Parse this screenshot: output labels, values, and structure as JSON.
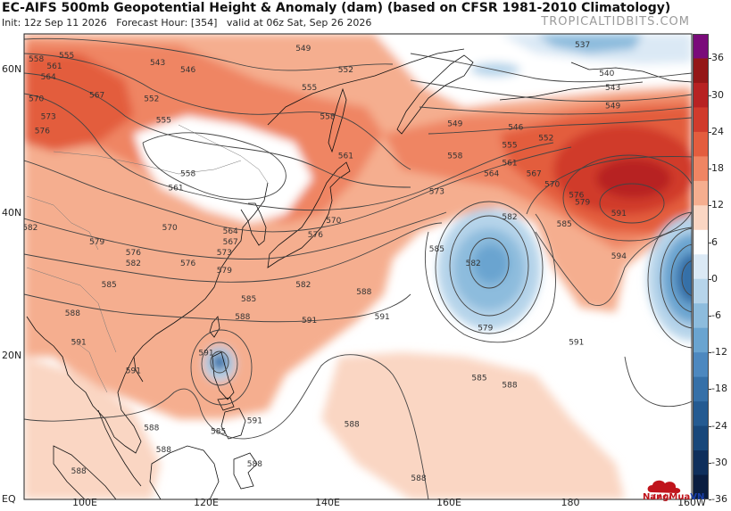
{
  "header": {
    "title": "EC-AIFS 500mb Geopotential Height & Anomaly (dam) (based on CFSR 1981-2010 Climatology)",
    "subtitle_init": "Init: 12z Sep 11 2026",
    "subtitle_hour": "Forecast Hour: [354]",
    "subtitle_valid": "valid at 06z Sat, Sep 26 2026",
    "brand": "TROPICALTIDBITS.COM"
  },
  "map": {
    "lat_labels": [
      {
        "text": "60N",
        "lat": 60
      },
      {
        "text": "40N",
        "lat": 40
      },
      {
        "text": "20N",
        "lat": 20
      },
      {
        "text": "EQ",
        "lat": 0
      }
    ],
    "lon_labels": [
      {
        "text": "100E",
        "lon": 100
      },
      {
        "text": "120E",
        "lon": 120
      },
      {
        "text": "140E",
        "lon": 140
      },
      {
        "text": "160E",
        "lon": 160
      },
      {
        "text": "180",
        "lon": 180
      },
      {
        "text": "160W",
        "lon": 200
      }
    ],
    "lat_range": [
      0,
      65
    ],
    "lon_range": [
      90,
      200
    ],
    "contour_interval_dam": 3,
    "contour_labels": [
      {
        "text": "555",
        "lon": 97,
        "lat": 62
      },
      {
        "text": "558",
        "lon": 92,
        "lat": 61.5
      },
      {
        "text": "561",
        "lon": 95,
        "lat": 60.5
      },
      {
        "text": "564",
        "lon": 94,
        "lat": 59
      },
      {
        "text": "567",
        "lon": 102,
        "lat": 56.5
      },
      {
        "text": "570",
        "lon": 92,
        "lat": 56
      },
      {
        "text": "573",
        "lon": 94,
        "lat": 53.5
      },
      {
        "text": "576",
        "lon": 93,
        "lat": 51.5
      },
      {
        "text": "543",
        "lon": 112,
        "lat": 61
      },
      {
        "text": "546",
        "lon": 117,
        "lat": 60
      },
      {
        "text": "552",
        "lon": 111,
        "lat": 56
      },
      {
        "text": "555",
        "lon": 113,
        "lat": 53
      },
      {
        "text": "549",
        "lon": 136,
        "lat": 63
      },
      {
        "text": "552",
        "lon": 143,
        "lat": 60
      },
      {
        "text": "555",
        "lon": 137,
        "lat": 57.5
      },
      {
        "text": "558",
        "lon": 140,
        "lat": 53.5
      },
      {
        "text": "561",
        "lon": 143,
        "lat": 48
      },
      {
        "text": "558",
        "lon": 117,
        "lat": 45.5
      },
      {
        "text": "561",
        "lon": 115,
        "lat": 43.5
      },
      {
        "text": "570",
        "lon": 114,
        "lat": 38
      },
      {
        "text": "564",
        "lon": 124,
        "lat": 37.5
      },
      {
        "text": "567",
        "lon": 124,
        "lat": 36
      },
      {
        "text": "573",
        "lon": 123,
        "lat": 34.5
      },
      {
        "text": "576",
        "lon": 117,
        "lat": 33
      },
      {
        "text": "579",
        "lon": 123,
        "lat": 32
      },
      {
        "text": "570",
        "lon": 141,
        "lat": 39
      },
      {
        "text": "576",
        "lon": 138,
        "lat": 37
      },
      {
        "text": "582",
        "lon": 108,
        "lat": 33
      },
      {
        "text": "582",
        "lon": 91,
        "lat": 38
      },
      {
        "text": "579",
        "lon": 102,
        "lat": 36
      },
      {
        "text": "576",
        "lon": 108,
        "lat": 34.5
      },
      {
        "text": "585",
        "lon": 104,
        "lat": 30
      },
      {
        "text": "588",
        "lon": 98,
        "lat": 26
      },
      {
        "text": "585",
        "lon": 127,
        "lat": 28
      },
      {
        "text": "588",
        "lon": 126,
        "lat": 25.5
      },
      {
        "text": "582",
        "lon": 136,
        "lat": 30
      },
      {
        "text": "591",
        "lon": 137,
        "lat": 25
      },
      {
        "text": "591",
        "lon": 99,
        "lat": 22
      },
      {
        "text": "591",
        "lon": 120,
        "lat": 20.5
      },
      {
        "text": "591",
        "lon": 108,
        "lat": 18
      },
      {
        "text": "591",
        "lon": 128,
        "lat": 11
      },
      {
        "text": "588",
        "lon": 111,
        "lat": 10
      },
      {
        "text": "588",
        "lon": 113,
        "lat": 7
      },
      {
        "text": "588",
        "lon": 99,
        "lat": 4
      },
      {
        "text": "585",
        "lon": 122,
        "lat": 9.5
      },
      {
        "text": "588",
        "lon": 128,
        "lat": 5
      },
      {
        "text": "588",
        "lon": 144,
        "lat": 10.5
      },
      {
        "text": "588",
        "lon": 155,
        "lat": 3
      },
      {
        "text": "537",
        "lon": 182,
        "lat": 63.5
      },
      {
        "text": "540",
        "lon": 186,
        "lat": 59.5
      },
      {
        "text": "543",
        "lon": 187,
        "lat": 57.5
      },
      {
        "text": "549",
        "lon": 187,
        "lat": 55
      },
      {
        "text": "549",
        "lon": 161,
        "lat": 52.5
      },
      {
        "text": "546",
        "lon": 171,
        "lat": 52
      },
      {
        "text": "552",
        "lon": 176,
        "lat": 50.5
      },
      {
        "text": "555",
        "lon": 170,
        "lat": 49.5
      },
      {
        "text": "558",
        "lon": 161,
        "lat": 48
      },
      {
        "text": "561",
        "lon": 170,
        "lat": 47
      },
      {
        "text": "564",
        "lon": 167,
        "lat": 45.5
      },
      {
        "text": "567",
        "lon": 174,
        "lat": 45.5
      },
      {
        "text": "570",
        "lon": 177,
        "lat": 44
      },
      {
        "text": "573",
        "lon": 158,
        "lat": 43
      },
      {
        "text": "576",
        "lon": 181,
        "lat": 42.5
      },
      {
        "text": "579",
        "lon": 182,
        "lat": 41.5
      },
      {
        "text": "582",
        "lon": 170,
        "lat": 39.5
      },
      {
        "text": "585",
        "lon": 179,
        "lat": 38.5
      },
      {
        "text": "591",
        "lon": 188,
        "lat": 40
      },
      {
        "text": "594",
        "lon": 188,
        "lat": 34
      },
      {
        "text": "585",
        "lon": 158,
        "lat": 35
      },
      {
        "text": "582",
        "lon": 164,
        "lat": 33
      },
      {
        "text": "579",
        "lon": 166,
        "lat": 24
      },
      {
        "text": "585",
        "lon": 165,
        "lat": 17
      },
      {
        "text": "588",
        "lon": 170,
        "lat": 16
      },
      {
        "text": "588",
        "lon": 146,
        "lat": 29
      },
      {
        "text": "591",
        "lon": 149,
        "lat": 25.5
      },
      {
        "text": "591",
        "lon": 181,
        "lat": 22
      }
    ],
    "features": [
      {
        "type": "anticyclone",
        "name": "subtropical-ridge",
        "center_lon": 189,
        "center_lat": 40,
        "max_anomaly_dam": 24
      },
      {
        "type": "cutoff-low",
        "name": "mid-pacific-low",
        "center_lon": 166,
        "center_lat": 25,
        "min_anomaly_dam": -12
      },
      {
        "type": "tropical-cyclone",
        "name": "philippine-sea-low",
        "center_lon": 121.5,
        "center_lat": 17.5,
        "min_anomaly_dam": -18
      },
      {
        "type": "trough",
        "name": "siberian-trough",
        "center_lon": 119,
        "center_lat": 46,
        "min_anomaly_dam": -6
      },
      {
        "type": "trough",
        "name": "aleutian-trough",
        "center_lon": 173,
        "center_lat": 63,
        "min_anomaly_dam": -12
      },
      {
        "type": "low",
        "name": "east-pacific-low",
        "center_lon": 200,
        "center_lat": 28,
        "min_anomaly_dam": -24
      }
    ]
  },
  "colorbar": {
    "labels": [
      "36",
      "30",
      "24",
      "18",
      "12",
      "6",
      "0",
      "-6",
      "-12",
      "-18",
      "-24",
      "-30",
      "-36"
    ],
    "colors": [
      "#7a0b7a",
      "#941717",
      "#b72222",
      "#d03b2c",
      "#e35d3e",
      "#ef8563",
      "#f5ae8f",
      "#fad6c3",
      "#ffffff",
      "#dbe9f5",
      "#b6d4ea",
      "#8dbcdd",
      "#6aa4d0",
      "#4d88bf",
      "#3670a8",
      "#245a91",
      "#18477a",
      "#0f2f5c",
      "#0a1d40"
    ]
  },
  "logo": {
    "text_red": "NangMua",
    "text_blue": "VN"
  }
}
